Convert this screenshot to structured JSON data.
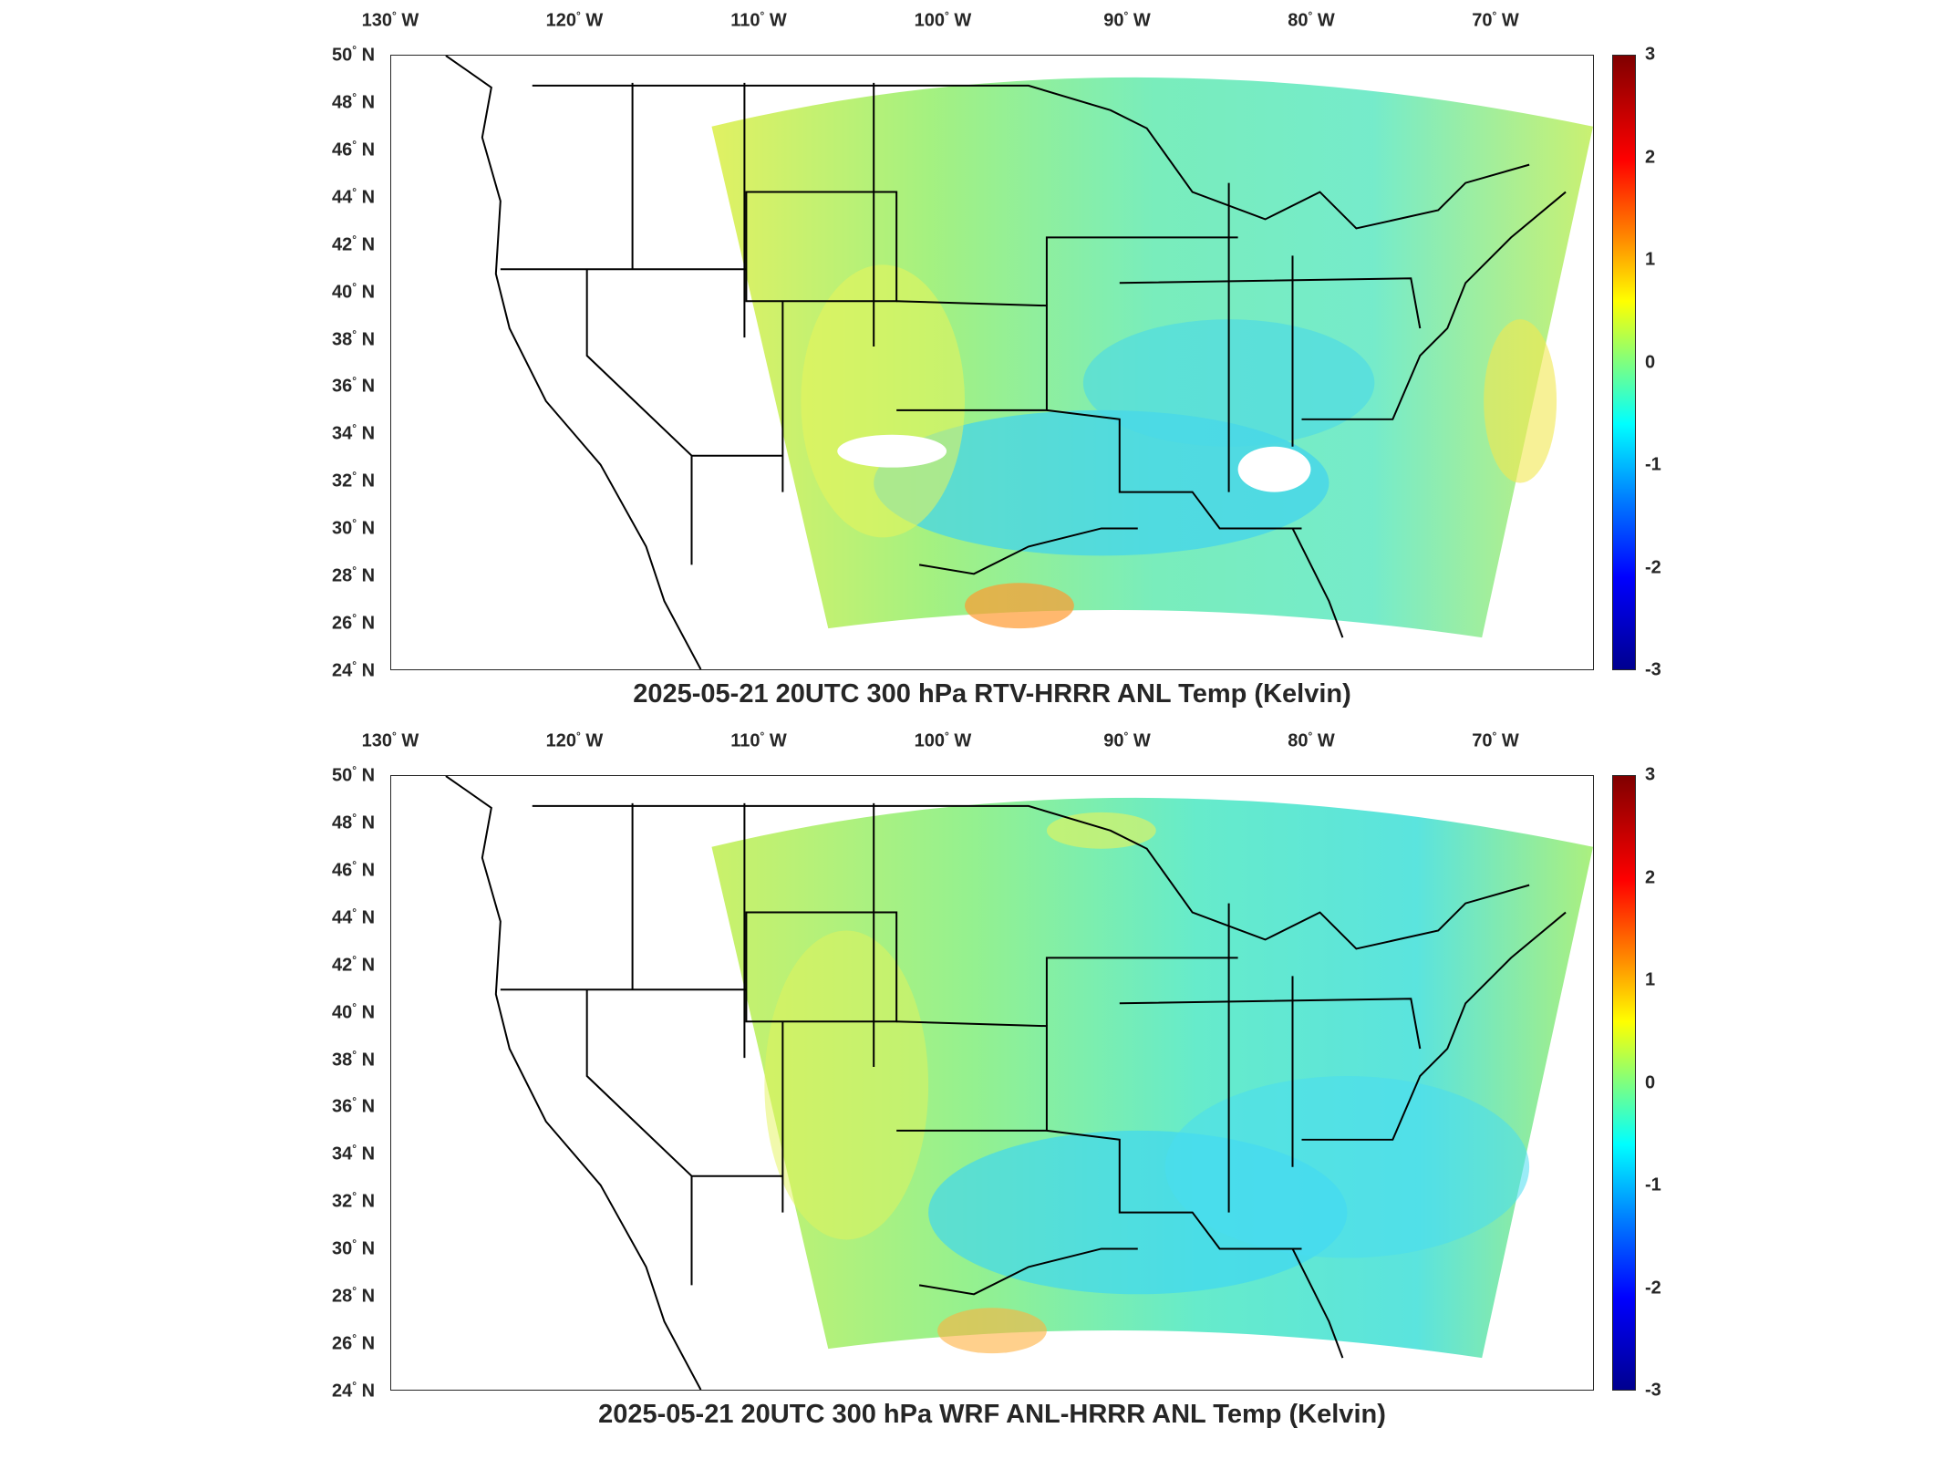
{
  "panels": [
    {
      "title": "2025-05-21 20UTC 300 hPa RTV-HRRR ANL Temp (Kelvin)"
    },
    {
      "title": "2025-05-21 20UTC 300 hPa WRF ANL-HRRR ANL Temp (Kelvin)"
    }
  ],
  "axes": {
    "longitude_labels": [
      "130",
      "120",
      "110",
      "100",
      "90",
      "80",
      "70"
    ],
    "longitude_suffix": "W",
    "latitude_labels": [
      "50",
      "48",
      "46",
      "44",
      "42",
      "40",
      "38",
      "36",
      "34",
      "32",
      "30",
      "28",
      "26",
      "24"
    ],
    "latitude_suffix": "N",
    "degree_symbol": "°"
  },
  "colorbar": {
    "ticks": [
      "3",
      "2",
      "1",
      "0",
      "-1",
      "-2",
      "-3"
    ],
    "colormap": "jet",
    "colors": [
      "#800000",
      "#ff0000",
      "#ff8c00",
      "#ffff00",
      "#7fff7f",
      "#00ffff",
      "#0080ff",
      "#0000ff",
      "#00008f"
    ]
  },
  "map": {
    "region": "Contiguous United States",
    "field_fill_colors": {
      "neutral": "#9df07a",
      "warm": "#e6f25a",
      "cool": "#5ee6d6",
      "cold": "#3fc8f0"
    }
  }
}
